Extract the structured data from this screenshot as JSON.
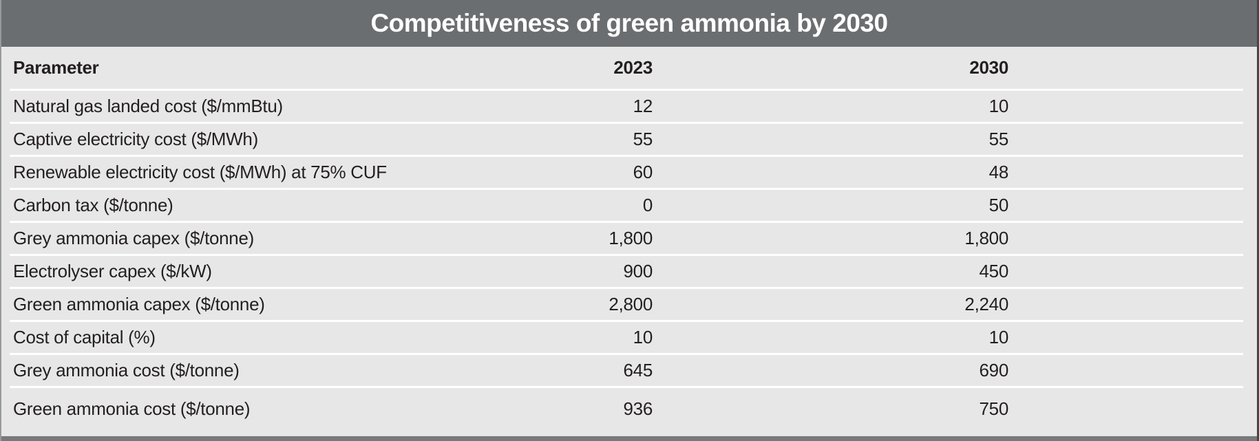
{
  "title": "Competitiveness of green ammonia by 2030",
  "chart_data": {
    "type": "table",
    "title": "Competitiveness of green ammonia by 2030",
    "columns": [
      "Parameter",
      "2023",
      "2030"
    ],
    "rows": [
      {
        "parameter": "Natural gas landed cost ($/mmBtu)",
        "y2023": "12",
        "y2030": "10"
      },
      {
        "parameter": "Captive electricity cost ($/MWh)",
        "y2023": "55",
        "y2030": "55"
      },
      {
        "parameter": "Renewable electricity cost ($/MWh) at 75% CUF",
        "y2023": "60",
        "y2030": "48"
      },
      {
        "parameter": "Carbon tax ($/tonne)",
        "y2023": "0",
        "y2030": "50"
      },
      {
        "parameter": "Grey ammonia capex ($/tonne)",
        "y2023": "1,800",
        "y2030": "1,800"
      },
      {
        "parameter": "Electrolyser capex ($/kW)",
        "y2023": "900",
        "y2030": "450"
      },
      {
        "parameter": "Green ammonia capex ($/tonne)",
        "y2023": "2,800",
        "y2030": "2,240"
      },
      {
        "parameter": "Cost of capital (%)",
        "y2023": "10",
        "y2030": "10"
      },
      {
        "parameter": "Grey ammonia cost ($/tonne)",
        "y2023": "645",
        "y2030": "690"
      },
      {
        "parameter": "Green ammonia cost ($/tonne)",
        "y2023": "936",
        "y2030": "750"
      }
    ],
    "layout": {
      "numeric_alignment": "right",
      "grid": "horizontal-white-dividers"
    }
  },
  "colors": {
    "title_bar_bg": "#6b6e70",
    "title_text": "#ffffff",
    "body_bg": "#e7e7e8",
    "row_divider": "#ffffff",
    "table_text": "#231f20",
    "left_border": "#97999b",
    "right_border": "#454648",
    "bottom_bar": "#77797b"
  }
}
